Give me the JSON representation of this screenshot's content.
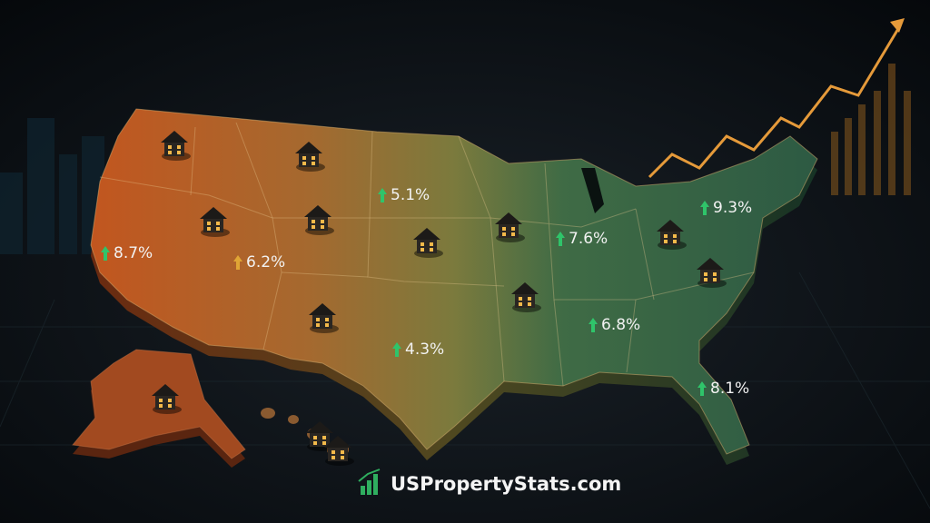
{
  "labels": [
    "8.7%",
    "6.2%",
    "5.1%",
    "4.3%",
    "7.6%",
    "6.8%",
    "9.3%",
    "8.1%"
  ],
  "brand": "USPropertyStats.com"
}
